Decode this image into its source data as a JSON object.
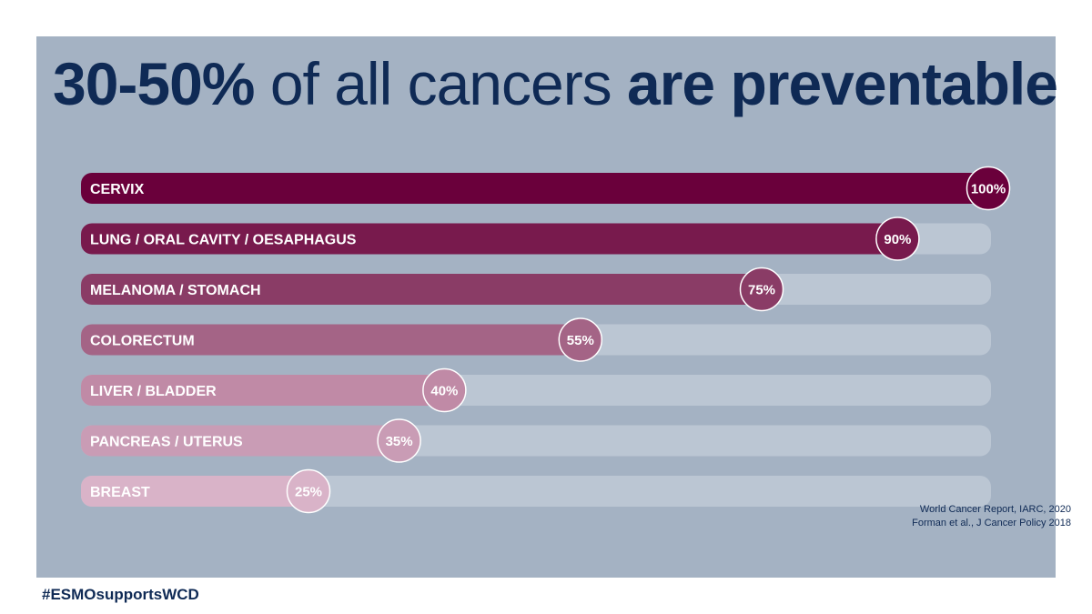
{
  "title": {
    "part1": "30-50%",
    "part2": " of all cancers ",
    "part3": "are preventable"
  },
  "chart_data": {
    "type": "bar",
    "orientation": "horizontal",
    "title": "30-50% of all cancers are preventable",
    "categories": [
      "CERVIX",
      "LUNG / ORAL CAVITY / OESAPHAGUS",
      "MELANOMA / STOMACH",
      "COLORECTUM",
      "LIVER / BLADDER",
      "PANCREAS / UTERUS",
      "BREAST"
    ],
    "values": [
      100,
      90,
      75,
      55,
      40,
      35,
      25
    ],
    "value_labels": [
      "100%",
      "90%",
      "75%",
      "55%",
      "40%",
      "35%",
      "25%"
    ],
    "xlim": [
      0,
      100
    ],
    "colors": [
      "#6a003b",
      "#781a4d",
      "#8a3c66",
      "#a46486",
      "#c08aa6",
      "#c99cb5",
      "#d9b3c8"
    ],
    "track_color": "#bbc6d3"
  },
  "sources": {
    "line1": "World Cancer Report, IARC, 2020",
    "line2": "Forman et al., J Cancer Policy 2018"
  },
  "hashtag": "#ESMOsupportsWCD"
}
